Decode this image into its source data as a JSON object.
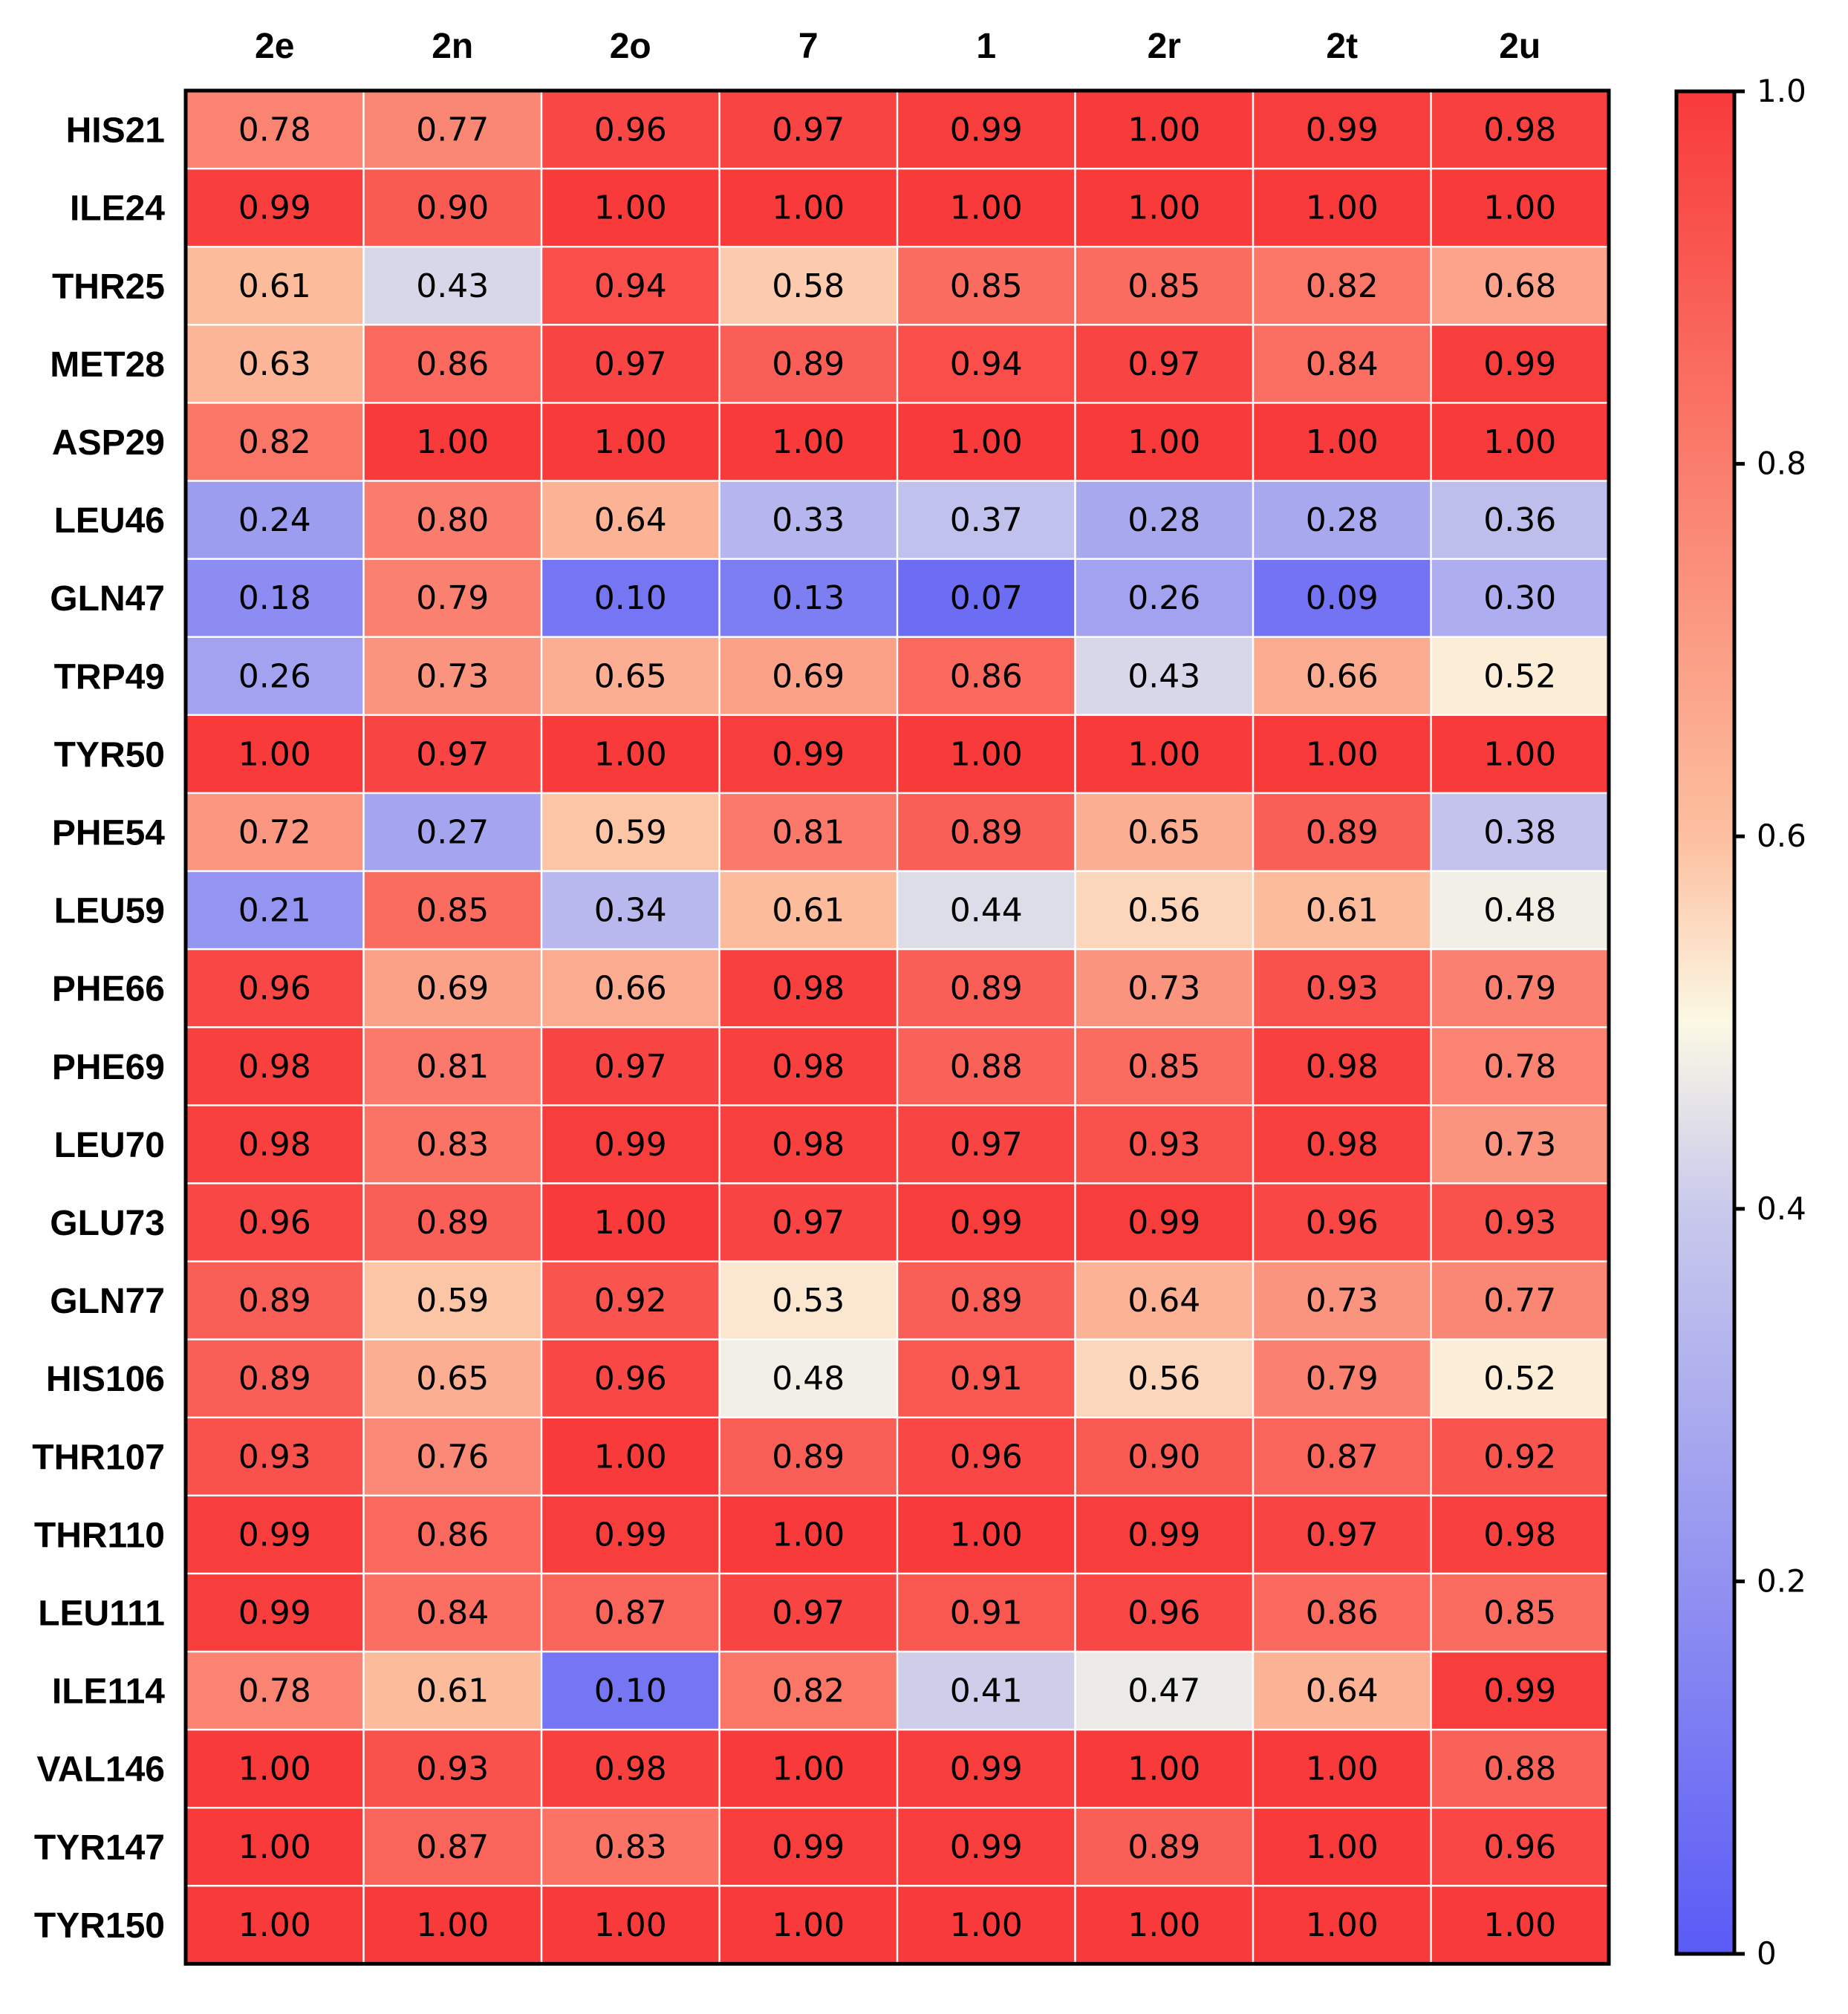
{
  "chart_data": {
    "type": "heatmap",
    "title": "",
    "xlabel": "",
    "ylabel": "",
    "columns": [
      "2e",
      "2n",
      "2o",
      "7",
      "1",
      "2r",
      "2t",
      "2u"
    ],
    "rows": [
      "HIS21",
      "ILE24",
      "THR25",
      "MET28",
      "ASP29",
      "LEU46",
      "GLN47",
      "TRP49",
      "TYR50",
      "PHE54",
      "LEU59",
      "PHE66",
      "PHE69",
      "LEU70",
      "GLU73",
      "GLN77",
      "HIS106",
      "THR107",
      "THR110",
      "LEU111",
      "ILE114",
      "VAL146",
      "TYR147",
      "TYR150"
    ],
    "values": [
      [
        0.78,
        0.77,
        0.96,
        0.97,
        0.99,
        1.0,
        0.99,
        0.98
      ],
      [
        0.99,
        0.9,
        1.0,
        1.0,
        1.0,
        1.0,
        1.0,
        1.0
      ],
      [
        0.61,
        0.43,
        0.94,
        0.58,
        0.85,
        0.85,
        0.82,
        0.68
      ],
      [
        0.63,
        0.86,
        0.97,
        0.89,
        0.94,
        0.97,
        0.84,
        0.99
      ],
      [
        0.82,
        1.0,
        1.0,
        1.0,
        1.0,
        1.0,
        1.0,
        1.0
      ],
      [
        0.24,
        0.8,
        0.64,
        0.33,
        0.37,
        0.28,
        0.28,
        0.36
      ],
      [
        0.18,
        0.79,
        0.1,
        0.13,
        0.07,
        0.26,
        0.09,
        0.3
      ],
      [
        0.26,
        0.73,
        0.65,
        0.69,
        0.86,
        0.43,
        0.66,
        0.52
      ],
      [
        1.0,
        0.97,
        1.0,
        0.99,
        1.0,
        1.0,
        1.0,
        1.0
      ],
      [
        0.72,
        0.27,
        0.59,
        0.81,
        0.89,
        0.65,
        0.89,
        0.38
      ],
      [
        0.21,
        0.85,
        0.34,
        0.61,
        0.44,
        0.56,
        0.61,
        0.48
      ],
      [
        0.96,
        0.69,
        0.66,
        0.98,
        0.89,
        0.73,
        0.93,
        0.79
      ],
      [
        0.98,
        0.81,
        0.97,
        0.98,
        0.88,
        0.85,
        0.98,
        0.78
      ],
      [
        0.98,
        0.83,
        0.99,
        0.98,
        0.97,
        0.93,
        0.98,
        0.73
      ],
      [
        0.96,
        0.89,
        1.0,
        0.97,
        0.99,
        0.99,
        0.96,
        0.93
      ],
      [
        0.89,
        0.59,
        0.92,
        0.53,
        0.89,
        0.64,
        0.73,
        0.77
      ],
      [
        0.89,
        0.65,
        0.96,
        0.48,
        0.91,
        0.56,
        0.79,
        0.52
      ],
      [
        0.93,
        0.76,
        1.0,
        0.89,
        0.96,
        0.9,
        0.87,
        0.92
      ],
      [
        0.99,
        0.86,
        0.99,
        1.0,
        1.0,
        0.99,
        0.97,
        0.98
      ],
      [
        0.99,
        0.84,
        0.87,
        0.97,
        0.91,
        0.96,
        0.86,
        0.85
      ],
      [
        0.78,
        0.61,
        0.1,
        0.82,
        0.41,
        0.47,
        0.64,
        0.99
      ],
      [
        1.0,
        0.93,
        0.98,
        1.0,
        0.99,
        1.0,
        1.0,
        0.88
      ],
      [
        1.0,
        0.87,
        0.83,
        0.99,
        0.99,
        0.89,
        1.0,
        0.96
      ],
      [
        1.0,
        1.0,
        1.0,
        1.0,
        1.0,
        1.0,
        1.0,
        1.0
      ]
    ],
    "value_format": "0.00",
    "colorbar": {
      "range": [
        0,
        1.0
      ],
      "ticks": [
        0,
        0.2,
        0.4,
        0.6,
        0.8,
        1.0
      ],
      "tick_labels": [
        "0",
        "0.2",
        "0.4",
        "0.6",
        "0.8",
        "1.0"
      ],
      "colors": {
        "low": "#5a5af6",
        "lower_mid": "#c9c9ec",
        "mid": "#fbf8e4",
        "upper_mid": "#fcbf9f",
        "high": "#f83a3a"
      }
    }
  }
}
